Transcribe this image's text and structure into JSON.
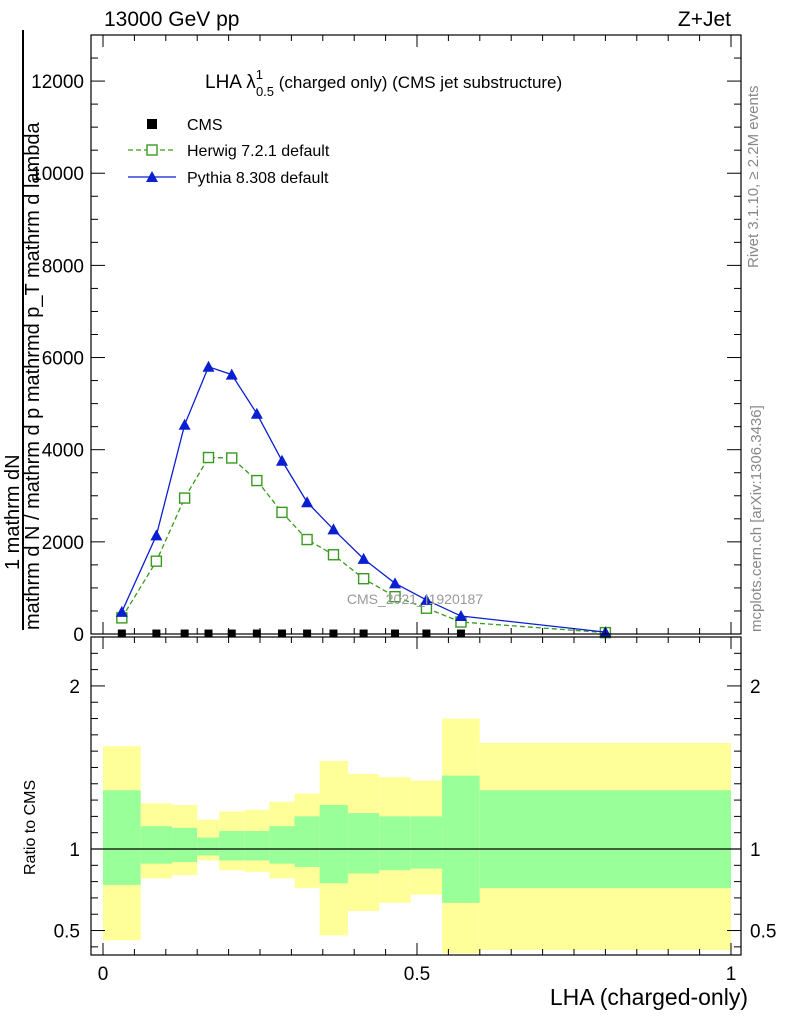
{
  "header": {
    "energy": "13000 GeV pp",
    "process": "Z+Jet",
    "rivet": "Rivet 3.1.10, ≥ 2.2M events",
    "mcplots": "mcplots.cern.ch [arXiv:1306.3436]"
  },
  "chart_data": {
    "type": "line",
    "title_main": "LHA λ",
    "title_sup": "1",
    "title_sub": "0.5",
    "title_rest": " (charged only) (CMS jet substructure)",
    "watermark": "CMS_2021_I1920187",
    "xlabel": "LHA (charged-only)",
    "ylabel_numerator": "1         mathrm dN",
    "ylabel_denominator": "mathrm d N / mathrm d p mathrmd p_T mathrm d lambda",
    "ratio_ylabel": "Ratio to CMS",
    "xlim": [
      0,
      1
    ],
    "main_ylim": [
      0,
      13000
    ],
    "ratio_ylim": [
      0.35,
      2.3
    ],
    "x_ticks": [
      "0",
      "0.5",
      "1"
    ],
    "main_y_ticks": [
      "0",
      "2000",
      "4000",
      "6000",
      "8000",
      "10000",
      "12000"
    ],
    "ratio_y_ticks": [
      "0.5",
      "1",
      "2"
    ],
    "bin_edges": [
      0.0,
      0.06,
      0.11,
      0.15,
      0.185,
      0.225,
      0.265,
      0.305,
      0.345,
      0.39,
      0.44,
      0.49,
      0.54,
      0.6,
      1.0
    ],
    "series": [
      {
        "name": "CMS",
        "style": "marker-square",
        "color": "#000000",
        "x": [
          0.03,
          0.085,
          0.13,
          0.168,
          0.205,
          0.245,
          0.285,
          0.325,
          0.367,
          0.415,
          0.465,
          0.515,
          0.57,
          0.8
        ],
        "y": [
          10,
          10,
          10,
          10,
          10,
          10,
          10,
          10,
          10,
          10,
          10,
          10,
          10,
          10
        ]
      },
      {
        "name": "Herwig 7.2.1 default",
        "style": "dashed-open-square",
        "color": "#3a9a1e",
        "x": [
          0.03,
          0.085,
          0.13,
          0.168,
          0.205,
          0.245,
          0.285,
          0.325,
          0.367,
          0.415,
          0.465,
          0.515,
          0.57,
          0.8
        ],
        "y": [
          350,
          1580,
          2950,
          3830,
          3820,
          3330,
          2640,
          2050,
          1720,
          1200,
          810,
          560,
          260,
          30
        ]
      },
      {
        "name": "Pythia 8.308 default",
        "style": "solid-triangle",
        "color": "#0a1fd0",
        "x": [
          0.03,
          0.085,
          0.13,
          0.168,
          0.205,
          0.245,
          0.285,
          0.325,
          0.367,
          0.415,
          0.465,
          0.515,
          0.57,
          0.8
        ],
        "y": [
          480,
          2140,
          4540,
          5800,
          5630,
          4780,
          3760,
          2860,
          2270,
          1630,
          1100,
          740,
          390,
          40
        ]
      }
    ],
    "ratio_bands": {
      "inner_color": "#99ff99",
      "outer_color": "#ffff99",
      "outer_lo": [
        0.44,
        0.82,
        0.84,
        0.93,
        0.87,
        0.86,
        0.82,
        0.76,
        0.47,
        0.62,
        0.67,
        0.72,
        0.36,
        0.38
      ],
      "outer_hi": [
        1.63,
        1.28,
        1.27,
        1.18,
        1.23,
        1.24,
        1.29,
        1.34,
        1.54,
        1.46,
        1.44,
        1.42,
        1.8,
        1.65
      ],
      "inner_lo": [
        0.78,
        0.91,
        0.92,
        0.96,
        0.93,
        0.93,
        0.91,
        0.89,
        0.79,
        0.85,
        0.87,
        0.88,
        0.67,
        0.76
      ],
      "inner_hi": [
        1.36,
        1.14,
        1.13,
        1.07,
        1.11,
        1.11,
        1.14,
        1.2,
        1.27,
        1.22,
        1.2,
        1.2,
        1.45,
        1.36
      ]
    }
  }
}
